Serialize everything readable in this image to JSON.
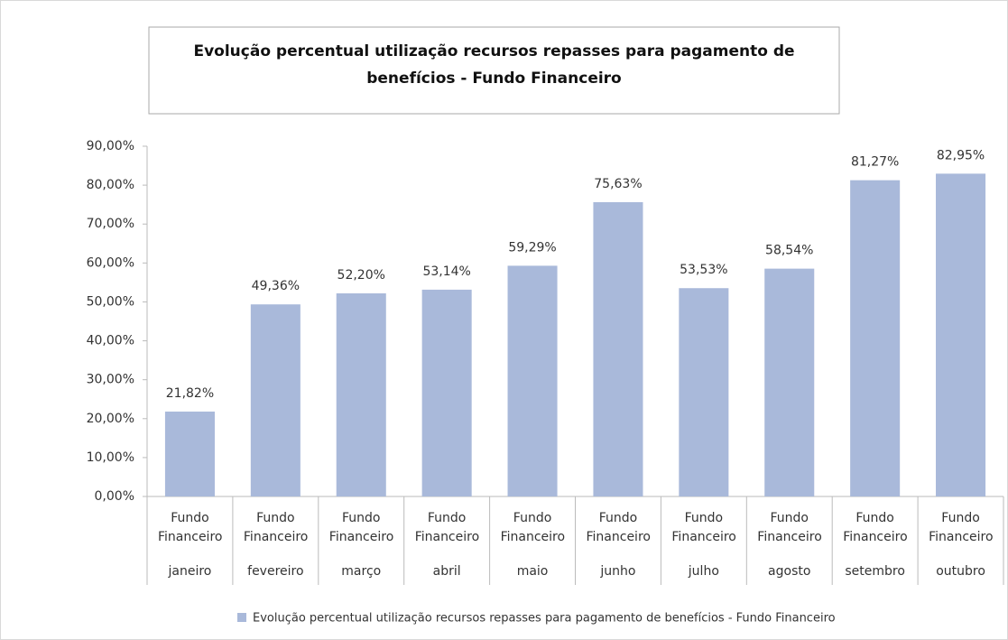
{
  "chart_data": {
    "type": "bar",
    "title": "Evolução percentual utilização recursos repasses para pagamento de benefícios - Fundo Financeiro",
    "subcategory": "Fundo Financeiro",
    "categories": [
      "janeiro",
      "fevereiro",
      "março",
      "abril",
      "maio",
      "junho",
      "julho",
      "agosto",
      "setembro",
      "outubro"
    ],
    "series": [
      {
        "name": "Evolução percentual utilização recursos repasses para pagamento de benefícios - Fundo Financeiro",
        "color": "#a9b9da",
        "values": [
          21.82,
          49.36,
          52.2,
          53.14,
          59.29,
          75.63,
          53.53,
          58.54,
          81.27,
          82.95
        ],
        "value_labels": [
          "21,82%",
          "49,36%",
          "52,20%",
          "53,14%",
          "59,29%",
          "75,63%",
          "53,53%",
          "58,54%",
          "81,27%",
          "82,95%"
        ]
      }
    ],
    "ylim": [
      0,
      90
    ],
    "yticks": [
      {
        "value": 0,
        "label": "0,00%"
      },
      {
        "value": 10,
        "label": "10,00%"
      },
      {
        "value": 20,
        "label": "20,00%"
      },
      {
        "value": 30,
        "label": "30,00%"
      },
      {
        "value": 40,
        "label": "40,00%"
      },
      {
        "value": 50,
        "label": "50,00%"
      },
      {
        "value": 60,
        "label": "60,00%"
      },
      {
        "value": 70,
        "label": "70,00%"
      },
      {
        "value": 80,
        "label": "80,00%"
      },
      {
        "value": 90,
        "label": "90,00%"
      }
    ],
    "grid": false,
    "legend": "bottom"
  }
}
